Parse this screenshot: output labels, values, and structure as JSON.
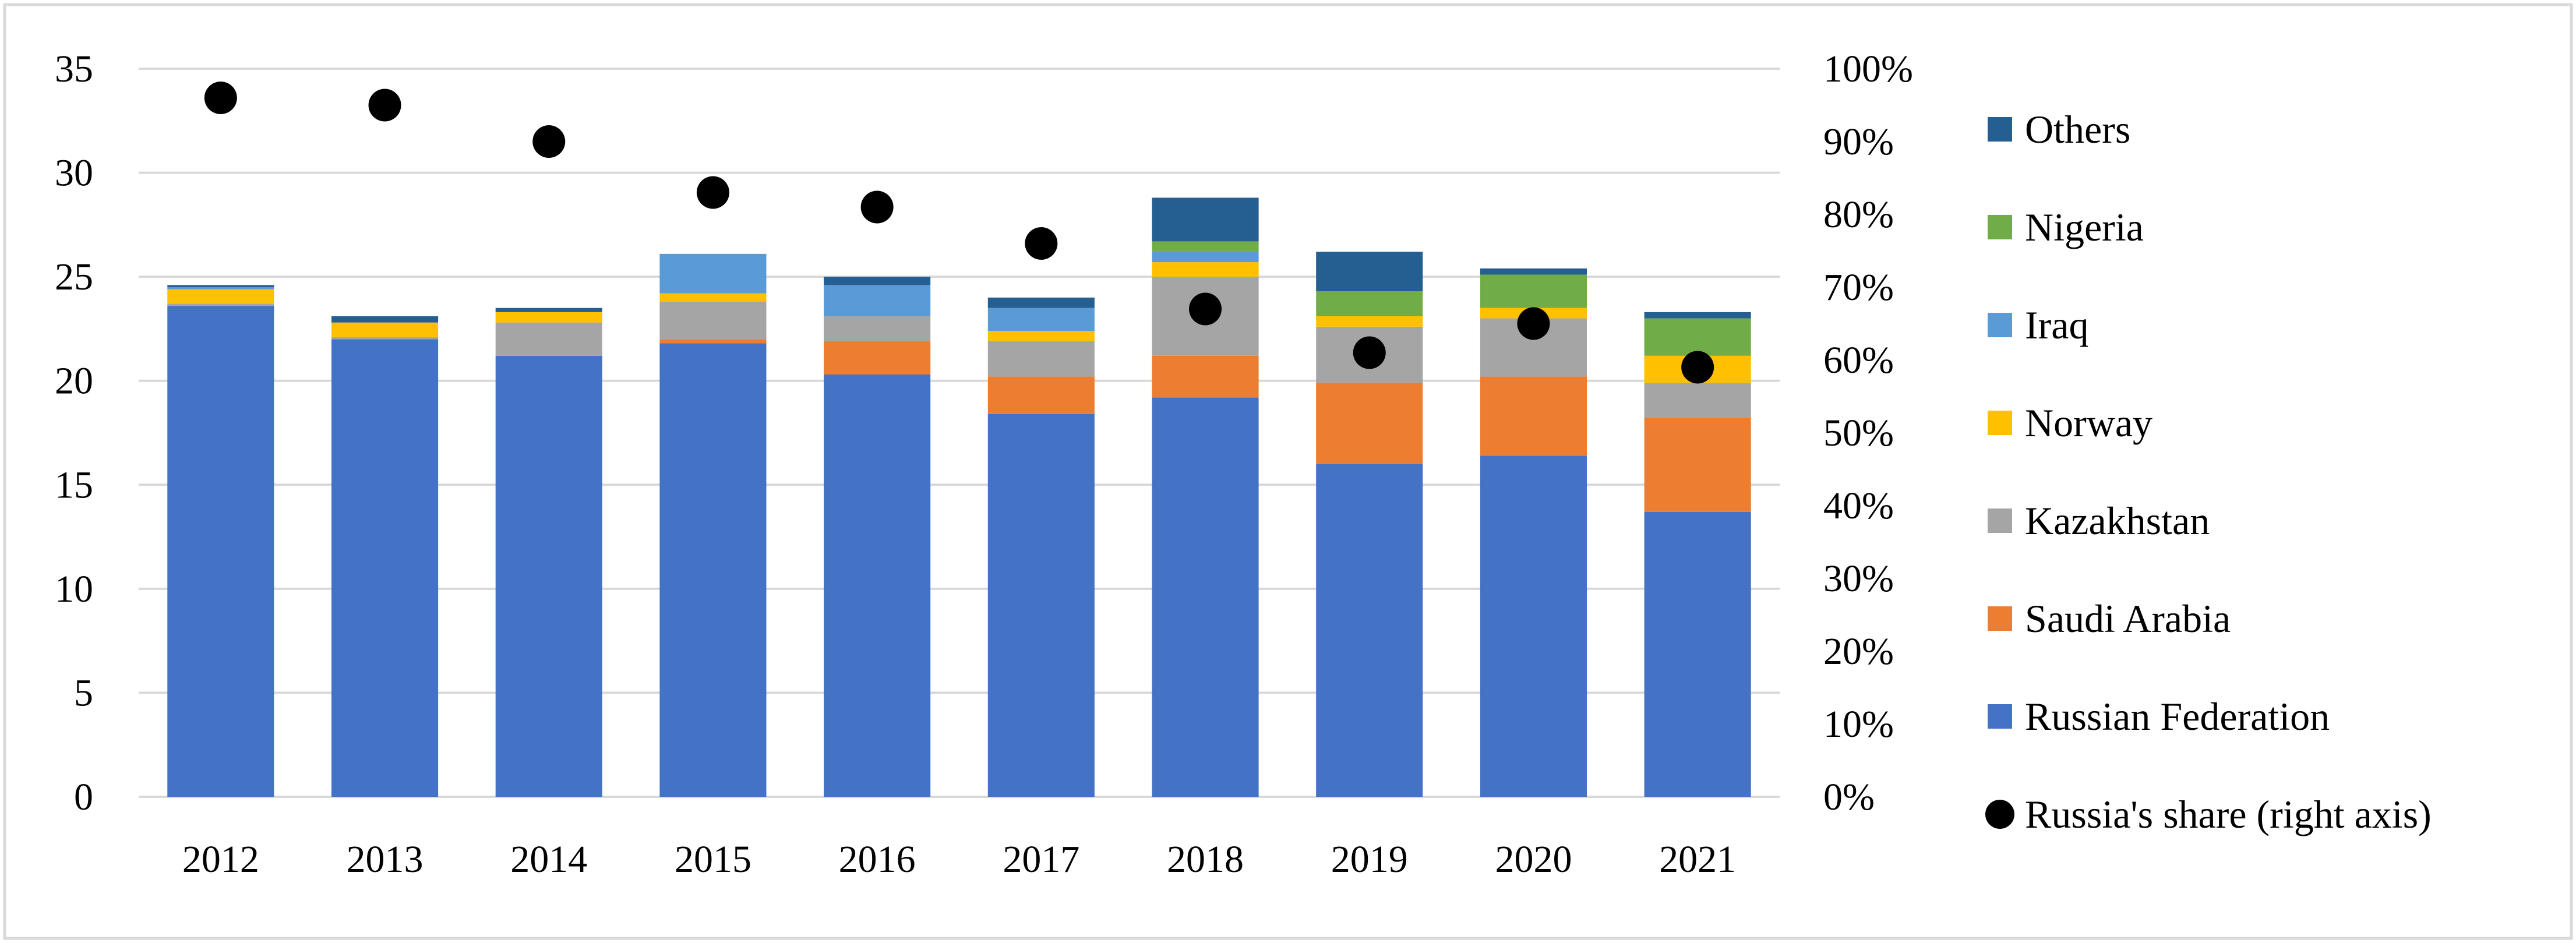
{
  "chart_data": {
    "type": "bar",
    "stacked": true,
    "title": "",
    "xlabel": "",
    "ylabel": "",
    "ylabel_right": "",
    "categories": [
      "2012",
      "2013",
      "2014",
      "2015",
      "2016",
      "2017",
      "2018",
      "2019",
      "2020",
      "2021"
    ],
    "ylim": [
      0,
      35
    ],
    "yticks": [
      "0",
      "5",
      "10",
      "15",
      "20",
      "25",
      "30",
      "35"
    ],
    "ylim_right": [
      0,
      1
    ],
    "yticks_right": [
      "0%",
      "10%",
      "20%",
      "30%",
      "40%",
      "50%",
      "60%",
      "70%",
      "80%",
      "90%",
      "100%"
    ],
    "grid": true,
    "legend_position": "right",
    "series": [
      {
        "name": "Russian Federation",
        "color": "#4472C4",
        "values": [
          23.6,
          22.0,
          21.2,
          21.8,
          20.3,
          18.4,
          19.2,
          16.0,
          16.4,
          13.7
        ]
      },
      {
        "name": "Saudi Arabia",
        "color": "#ED7D31",
        "values": [
          0.0,
          0.0,
          0.0,
          0.2,
          1.6,
          1.8,
          2.0,
          3.9,
          3.8,
          4.5
        ]
      },
      {
        "name": "Kazakhstan",
        "color": "#A5A5A5",
        "values": [
          0.1,
          0.1,
          1.6,
          1.8,
          1.2,
          1.7,
          3.8,
          2.7,
          2.8,
          1.7
        ]
      },
      {
        "name": "Norway",
        "color": "#FFC000",
        "values": [
          0.7,
          0.7,
          0.5,
          0.4,
          0.0,
          0.5,
          0.7,
          0.5,
          0.5,
          1.3
        ]
      },
      {
        "name": "Iraq",
        "color": "#5B9BD5",
        "values": [
          0.1,
          0.0,
          0.0,
          1.9,
          1.5,
          1.1,
          0.5,
          0.0,
          0.0,
          0.0
        ]
      },
      {
        "name": "Nigeria",
        "color": "#70AD47",
        "values": [
          0.0,
          0.0,
          0.0,
          0.0,
          0.0,
          0.0,
          0.5,
          1.2,
          1.6,
          1.8
        ]
      },
      {
        "name": "Others",
        "color": "#255E91",
        "values": [
          0.1,
          0.3,
          0.2,
          0.0,
          0.4,
          0.5,
          2.1,
          1.9,
          0.3,
          0.3
        ]
      }
    ],
    "line_series": {
      "name": "Russia's share (right axis)",
      "color": "#000000",
      "marker": "circle",
      "axis": "right",
      "values": [
        0.96,
        0.95,
        0.9,
        0.83,
        0.81,
        0.76,
        0.67,
        0.61,
        0.65,
        0.59
      ]
    },
    "legend_order": [
      "Others",
      "Nigeria",
      "Iraq",
      "Norway",
      "Kazakhstan",
      "Saudi Arabia",
      "Russian Federation",
      "Russia's share (right axis)"
    ]
  }
}
